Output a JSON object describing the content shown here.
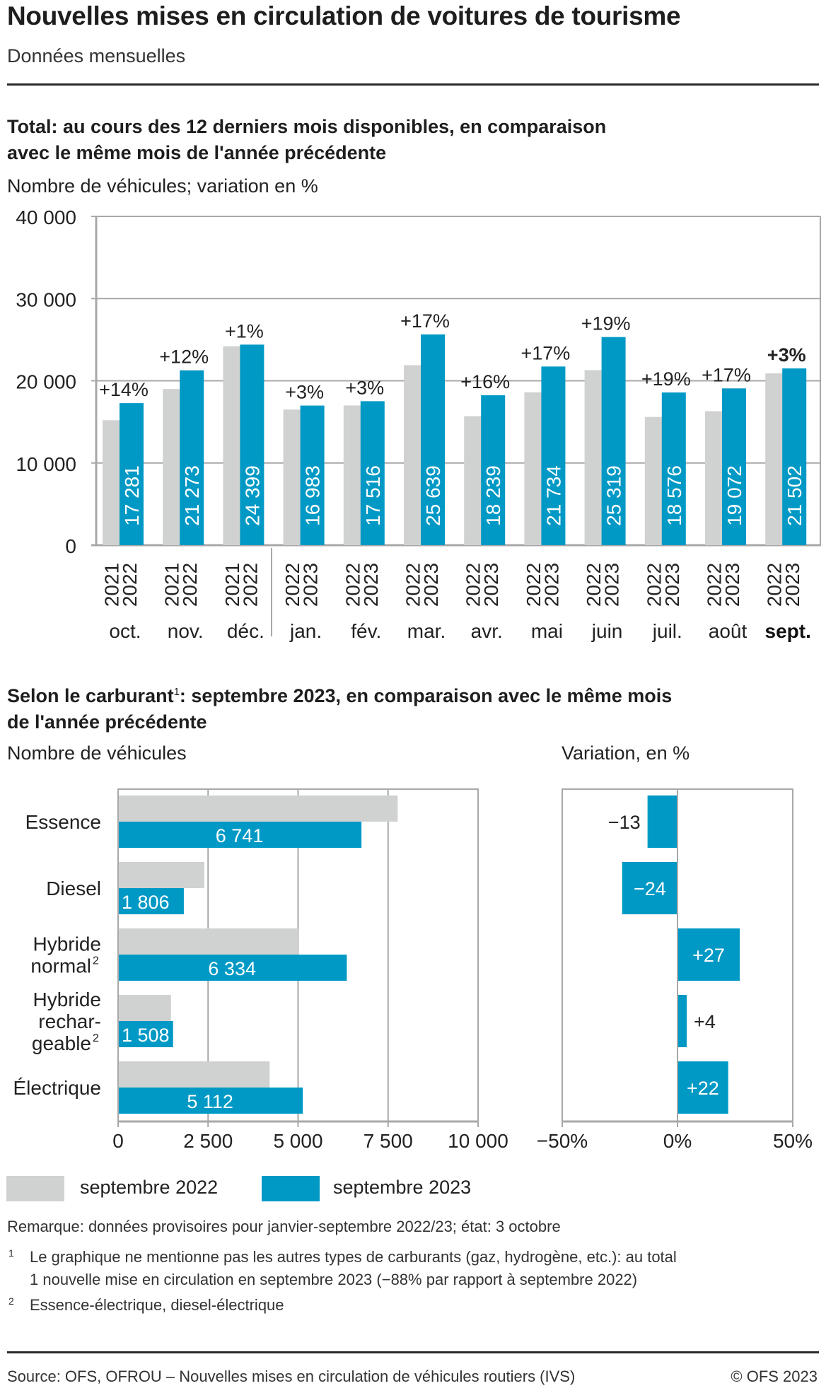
{
  "header": {
    "title": "Nouvelles mises en circulation de voitures de tourisme",
    "subtitle": "Données mensuelles"
  },
  "colors": {
    "previous_year": "#D0D2D1",
    "current_year": "#0099C5",
    "grid": "#A8A8A8",
    "text": "#1E1E1E"
  },
  "section1": {
    "title_line1": "Total: au cours des 12 derniers mois disponibles, en comparaison",
    "title_line2": "avec le même mois de l'année précédente",
    "unit": "Nombre de véhicules; variation en %"
  },
  "section2": {
    "title_line1_pre": "Selon le carburant",
    "title_line1_sup": "1",
    "title_line1_post": ": septembre 2023, en comparaison avec le même mois",
    "title_line2": "de l'année précédente",
    "unit_left": "Nombre de véhicules",
    "unit_right": "Variation, en %"
  },
  "chart_data": [
    {
      "type": "bar",
      "title": "Total: au cours des 12 derniers mois disponibles, en comparaison avec le même mois de l'année précédente",
      "ylabel": "Nombre de véhicules; variation en %",
      "ylim": [
        0,
        40000
      ],
      "yticks": [
        0,
        10000,
        20000,
        30000,
        40000
      ],
      "ytick_labels": [
        "0",
        "10 000",
        "20 000",
        "30 000",
        "40 000"
      ],
      "grid": true,
      "categories": [
        "oct.",
        "nov.",
        "déc.",
        "jan.",
        "fév.",
        "mar.",
        "avr.",
        "mai",
        "juin",
        "juil.",
        "août",
        "sept."
      ],
      "highlight_category": "sept.",
      "year_labels_previous": [
        "2021",
        "2021",
        "2021",
        "2022",
        "2022",
        "2022",
        "2022",
        "2022",
        "2022",
        "2022",
        "2022",
        "2022"
      ],
      "year_labels_current": [
        "2022",
        "2022",
        "2022",
        "2023",
        "2023",
        "2023",
        "2023",
        "2023",
        "2023",
        "2023",
        "2023",
        "2023"
      ],
      "series": [
        {
          "name": "année précédente",
          "values": [
            15200,
            19000,
            24200,
            16500,
            17000,
            21900,
            15700,
            18600,
            21300,
            15600,
            16300,
            20900
          ]
        },
        {
          "name": "année en cours",
          "values": [
            17281,
            21273,
            24399,
            16983,
            17516,
            25639,
            18239,
            21734,
            25319,
            18576,
            19072,
            21502
          ],
          "value_labels": [
            "17 281",
            "21 273",
            "24 399",
            "16 983",
            "17 516",
            "25 639",
            "18 239",
            "21 734",
            "25 319",
            "18 576",
            "19 072",
            "21 502"
          ]
        }
      ],
      "change_labels": [
        "+14%",
        "+12%",
        "+1%",
        "+3%",
        "+3%",
        "+17%",
        "+16%",
        "+17%",
        "+19%",
        "+19%",
        "+17%",
        "+3%"
      ]
    },
    {
      "type": "bar",
      "orientation": "horizontal",
      "title": "Selon le carburant: septembre 2023, nombre de véhicules",
      "xlabel": "Nombre de véhicules",
      "xlim": [
        0,
        10000
      ],
      "xticks": [
        0,
        2500,
        5000,
        7500,
        10000
      ],
      "xtick_labels": [
        "0",
        "2 500",
        "5 000",
        "7 500",
        "10 000"
      ],
      "grid": true,
      "categories": [
        {
          "lines": [
            "Essence"
          ],
          "sup": ""
        },
        {
          "lines": [
            "Diesel"
          ],
          "sup": ""
        },
        {
          "lines": [
            "Hybride",
            "normal"
          ],
          "sup": "2"
        },
        {
          "lines": [
            "Hybride",
            "rechar-",
            "geable"
          ],
          "sup": "2"
        },
        {
          "lines": [
            "Électrique"
          ],
          "sup": ""
        }
      ],
      "series": [
        {
          "name": "septembre 2022",
          "values": [
            7748,
            2376,
            4987,
            1450,
            4190
          ]
        },
        {
          "name": "septembre 2023",
          "values": [
            6741,
            1806,
            6334,
            1508,
            5112
          ],
          "value_labels": [
            "6 741",
            "1 806",
            "6 334",
            "1 508",
            "5 112"
          ]
        }
      ]
    },
    {
      "type": "bar",
      "orientation": "horizontal",
      "title": "Variation, en %",
      "xlim": [
        -50,
        50
      ],
      "xticks": [
        -50,
        0,
        50
      ],
      "xtick_labels": [
        "−50%",
        "0%",
        "50%"
      ],
      "categories": [
        "Essence",
        "Diesel",
        "Hybride normal",
        "Hybride rechargeable",
        "Électrique"
      ],
      "values": [
        -13,
        -24,
        27,
        4,
        22
      ],
      "value_labels": [
        "−13",
        "−24",
        "+27",
        "+4",
        "+22"
      ]
    }
  ],
  "legend": {
    "items": [
      {
        "label": "septembre 2022",
        "color": "#D0D2D1"
      },
      {
        "label": "septembre 2023",
        "color": "#0099C5"
      }
    ]
  },
  "notes": {
    "remark": "Remarque: données provisoires pour janvier-septembre 2022/23; état: 3 octobre",
    "footnotes": [
      {
        "num": "1",
        "lines": [
          "Le graphique ne mentionne pas les autres types de carburants (gaz, hydrogène, etc.): au total",
          "1 nouvelle mise en circulation en septembre 2023 (−88% par rapport à septembre 2022)"
        ]
      },
      {
        "num": "2",
        "lines": [
          "Essence-électrique, diesel-électrique"
        ]
      }
    ]
  },
  "footer": {
    "source": "Source: OFS, OFROU – Nouvelles mises en circulation de véhicules routiers (IVS)",
    "copyright": "© OFS 2023"
  }
}
